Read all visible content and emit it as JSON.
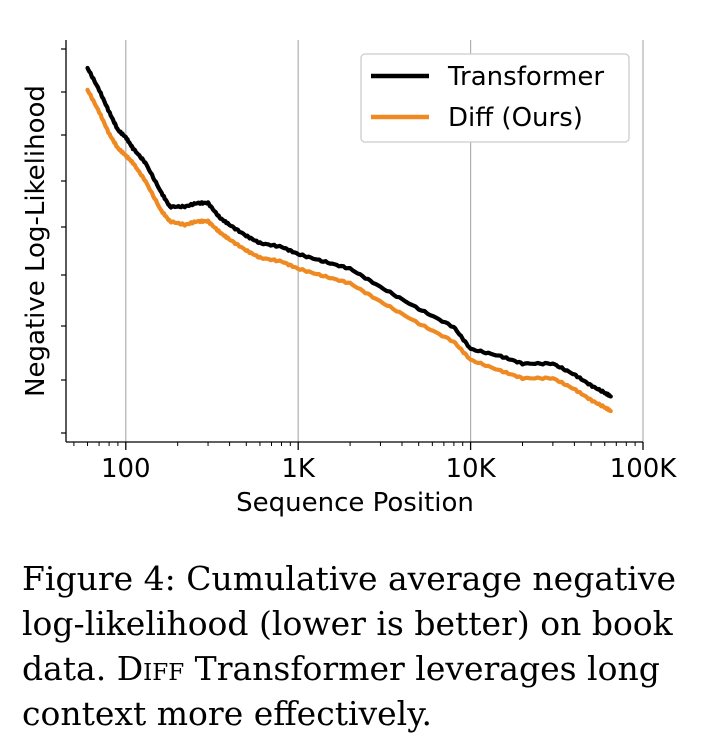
{
  "chart_data": {
    "type": "line",
    "xlabel": "Sequence Position",
    "ylabel": "Negative Log-Likelihood",
    "xscale": "log",
    "xlim": [
      45,
      100000
    ],
    "ylim": [
      0,
      100
    ],
    "x_ticks": [
      {
        "value": 100,
        "label": "100"
      },
      {
        "value": 1000,
        "label": "1K"
      },
      {
        "value": 10000,
        "label": "10K"
      },
      {
        "value": 100000,
        "label": "100K"
      }
    ],
    "grid": "vertical",
    "legend": "top-right",
    "series": [
      {
        "name": "Transformer",
        "color": "#000000",
        "points": [
          [
            60,
            97
          ],
          [
            70,
            91
          ],
          [
            80,
            85
          ],
          [
            90,
            80
          ],
          [
            100,
            78
          ],
          [
            110,
            75
          ],
          [
            130,
            71
          ],
          [
            160,
            63
          ],
          [
            180,
            59
          ],
          [
            220,
            59
          ],
          [
            260,
            60
          ],
          [
            300,
            60
          ],
          [
            350,
            56
          ],
          [
            400,
            54
          ],
          [
            500,
            51
          ],
          [
            600,
            49
          ],
          [
            800,
            48
          ],
          [
            1000,
            46
          ],
          [
            1400,
            44
          ],
          [
            2000,
            42
          ],
          [
            3000,
            37
          ],
          [
            5000,
            31
          ],
          [
            8000,
            26
          ],
          [
            10000,
            20
          ],
          [
            15000,
            18
          ],
          [
            20000,
            16
          ],
          [
            30000,
            16
          ],
          [
            40000,
            13
          ],
          [
            50000,
            10
          ],
          [
            60000,
            8
          ],
          [
            65000,
            7
          ]
        ]
      },
      {
        "name": "Diff (Ours)",
        "color": "#ef8a22",
        "points": [
          [
            60,
            91
          ],
          [
            70,
            85
          ],
          [
            80,
            79
          ],
          [
            90,
            75
          ],
          [
            100,
            73
          ],
          [
            110,
            71
          ],
          [
            130,
            66
          ],
          [
            160,
            58
          ],
          [
            180,
            55
          ],
          [
            220,
            54
          ],
          [
            260,
            55
          ],
          [
            300,
            55
          ],
          [
            350,
            52
          ],
          [
            400,
            50
          ],
          [
            500,
            47
          ],
          [
            600,
            45
          ],
          [
            800,
            44
          ],
          [
            1000,
            42
          ],
          [
            1400,
            40
          ],
          [
            2000,
            38
          ],
          [
            3000,
            33
          ],
          [
            5000,
            27
          ],
          [
            8000,
            22
          ],
          [
            10000,
            17
          ],
          [
            15000,
            14
          ],
          [
            20000,
            12
          ],
          [
            30000,
            12
          ],
          [
            40000,
            9
          ],
          [
            50000,
            6
          ],
          [
            60000,
            4
          ],
          [
            65000,
            3
          ]
        ]
      }
    ]
  },
  "caption": {
    "figure_label": "Figure 4:",
    "text_part1": " Cumulative average negative log-likelihood (lower is better) on book data. ",
    "diff_small_caps": "Diff",
    "text_part2": " Transformer leverages long context more effectively."
  }
}
